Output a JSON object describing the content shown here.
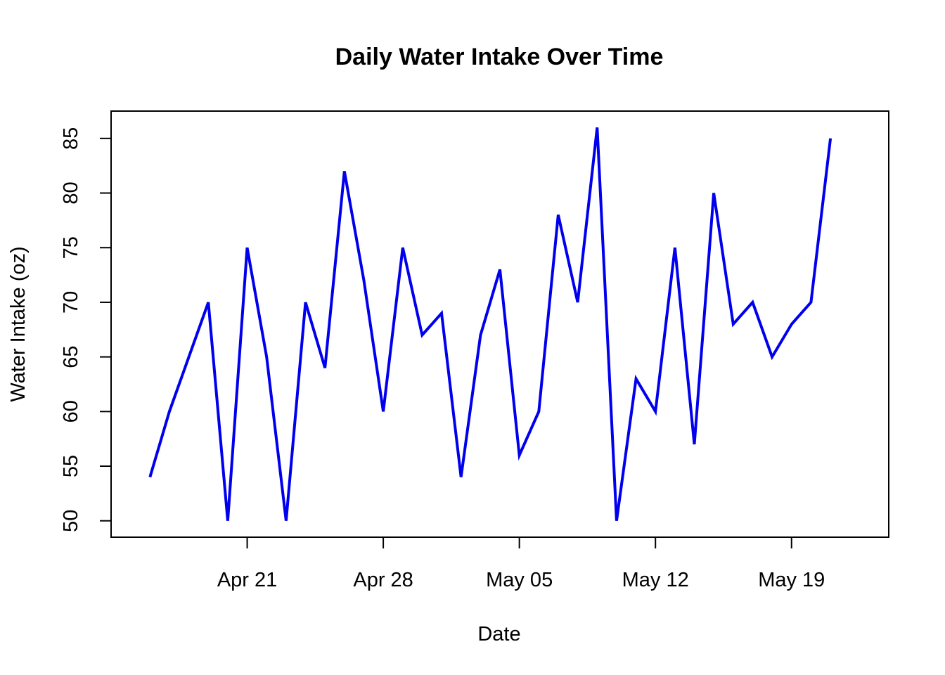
{
  "chart_data": {
    "type": "line",
    "title": "Daily Water Intake Over Time",
    "xlabel": "Date",
    "ylabel": "Water Intake (oz)",
    "line_color": "#0000ee",
    "x_ticks": [
      {
        "date": "2024-04-21",
        "label": "Apr 21"
      },
      {
        "date": "2024-04-28",
        "label": "Apr 28"
      },
      {
        "date": "2024-05-05",
        "label": "May 05"
      },
      {
        "date": "2024-05-12",
        "label": "May 12"
      },
      {
        "date": "2024-05-19",
        "label": "May 19"
      }
    ],
    "y_ticks": [
      50,
      55,
      60,
      65,
      70,
      75,
      80,
      85
    ],
    "xlim": [
      "2024-04-14",
      "2024-05-24"
    ],
    "ylim": [
      48.5,
      87.5
    ],
    "series": [
      {
        "x": [
          "2024-04-16",
          "2024-04-17",
          "2024-04-18",
          "2024-04-19",
          "2024-04-20",
          "2024-04-21",
          "2024-04-22",
          "2024-04-23",
          "2024-04-24",
          "2024-04-25",
          "2024-04-26",
          "2024-04-27",
          "2024-04-28",
          "2024-04-29",
          "2024-04-30",
          "2024-05-01",
          "2024-05-02",
          "2024-05-03",
          "2024-05-04",
          "2024-05-05",
          "2024-05-06",
          "2024-05-07",
          "2024-05-08",
          "2024-05-09",
          "2024-05-10",
          "2024-05-11",
          "2024-05-12",
          "2024-05-13",
          "2024-05-14",
          "2024-05-15",
          "2024-05-16",
          "2024-05-17",
          "2024-05-18",
          "2024-05-19",
          "2024-05-20",
          "2024-05-21"
        ],
        "values": [
          54,
          60,
          65,
          70,
          50,
          75,
          65,
          50,
          70,
          64,
          82,
          72,
          60,
          75,
          67,
          69,
          54,
          67,
          73,
          56,
          60,
          78,
          70,
          86,
          50,
          63,
          60,
          75,
          57,
          80,
          68,
          70,
          65,
          68,
          70,
          85
        ]
      }
    ]
  }
}
